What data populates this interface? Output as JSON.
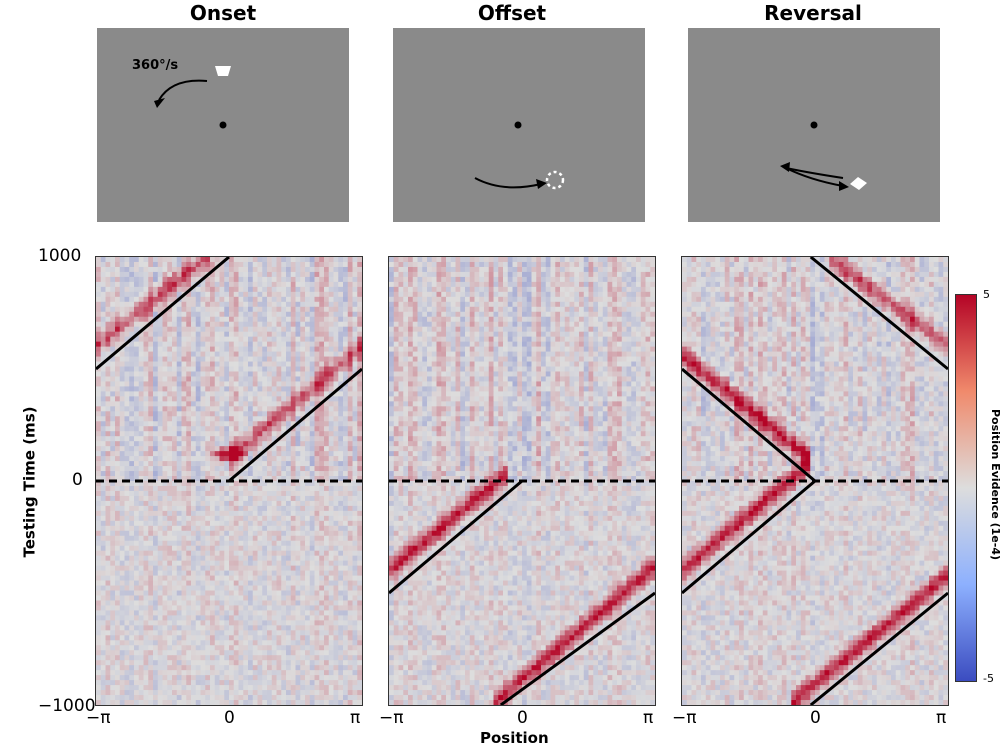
{
  "panels": [
    {
      "title": "Onset",
      "stimulus_annotation": "360°/s"
    },
    {
      "title": "Offset"
    },
    {
      "title": "Reversal"
    }
  ],
  "colors": {
    "stimulus_bg": "#8a8a8a",
    "heat_low": "#3b4cc0",
    "heat_mid": "#dddddd",
    "heat_high": "#b40426"
  },
  "chart_data": [
    {
      "type": "heatmap",
      "title": "Onset",
      "xlabel": "Position",
      "ylabel": "Testing Time (ms)",
      "xlim": [
        -3.1416,
        3.1416
      ],
      "ylim": [
        -1000,
        1000
      ],
      "xticks": [
        "−π",
        "0",
        "π"
      ],
      "yticks": [
        "1000",
        "0",
        "−1000"
      ],
      "reference_lines": [
        {
          "style": "solid",
          "points": [
            [
              0,
              0
            ],
            [
              3.1416,
              500
            ]
          ]
        },
        {
          "style": "solid",
          "points": [
            [
              -3.1416,
              500
            ],
            [
              0,
              1000
            ]
          ]
        },
        {
          "style": "dashed",
          "y": 0
        }
      ],
      "features": [
        {
          "kind": "band",
          "from": [
            0,
            100
          ],
          "to": [
            3.1416,
            600
          ],
          "strength": 3
        },
        {
          "kind": "band",
          "from": [
            -3.1416,
            600
          ],
          "to": [
            -0.5,
            1000
          ],
          "strength": 3
        },
        {
          "kind": "blob",
          "x": 0,
          "y": 120,
          "strength": 5
        }
      ]
    },
    {
      "type": "heatmap",
      "title": "Offset",
      "xlabel": "Position",
      "xlim": [
        -3.1416,
        3.1416
      ],
      "ylim": [
        -1000,
        1000
      ],
      "xticks": [
        "−π",
        "0",
        "π"
      ],
      "reference_lines": [
        {
          "style": "solid",
          "points": [
            [
              -3.1416,
              -500
            ],
            [
              0,
              0
            ]
          ]
        },
        {
          "style": "solid",
          "points": [
            [
              -0.5,
              -1000
            ],
            [
              3.1416,
              -500
            ]
          ]
        },
        {
          "style": "dashed",
          "y": 0
        }
      ],
      "features": [
        {
          "kind": "band",
          "from": [
            -3.1416,
            -400
          ],
          "to": [
            -0.3,
            40
          ],
          "strength": 4
        },
        {
          "kind": "band",
          "from": [
            -0.7,
            -1000
          ],
          "to": [
            3.1416,
            -380
          ],
          "strength": 4
        }
      ]
    },
    {
      "type": "heatmap",
      "title": "Reversal",
      "xlabel": "Position",
      "xlim": [
        -3.1416,
        3.1416
      ],
      "ylim": [
        -1000,
        1000
      ],
      "xticks": [
        "−π",
        "0",
        "π"
      ],
      "reference_lines": [
        {
          "style": "solid",
          "points": [
            [
              -3.1416,
              -500
            ],
            [
              0,
              0
            ]
          ]
        },
        {
          "style": "solid",
          "points": [
            [
              -3.1416,
              500
            ],
            [
              0,
              0
            ]
          ]
        },
        {
          "style": "solid",
          "points": [
            [
              -0.1,
              1000
            ],
            [
              3.1416,
              500
            ]
          ]
        },
        {
          "style": "solid",
          "points": [
            [
              -0.1,
              -1000
            ],
            [
              3.1416,
              -500
            ]
          ]
        },
        {
          "style": "dashed",
          "y": 0
        }
      ],
      "features": [
        {
          "kind": "band",
          "from": [
            -3.1416,
            -400
          ],
          "to": [
            -0.1,
            80
          ],
          "strength": 4
        },
        {
          "kind": "band",
          "from": [
            -3.1416,
            560
          ],
          "to": [
            -0.1,
            100
          ],
          "strength": 4
        },
        {
          "kind": "band",
          "from": [
            -0.6,
            -1000
          ],
          "to": [
            3.1416,
            -420
          ],
          "strength": 4
        },
        {
          "kind": "band",
          "from": [
            0.3,
            1000
          ],
          "to": [
            3.1416,
            600
          ],
          "strength": 3
        }
      ]
    }
  ],
  "axes": {
    "xlabel": "Position",
    "ylabel": "Testing Time (ms)",
    "yticks": [
      "1000",
      "0",
      "−1000"
    ],
    "xticks": [
      "−π",
      "0",
      "π"
    ]
  },
  "colorbar": {
    "label": "Position Evidence (1e-4)",
    "min_label": "-5",
    "max_label": "5",
    "range": [
      -5,
      5
    ]
  }
}
